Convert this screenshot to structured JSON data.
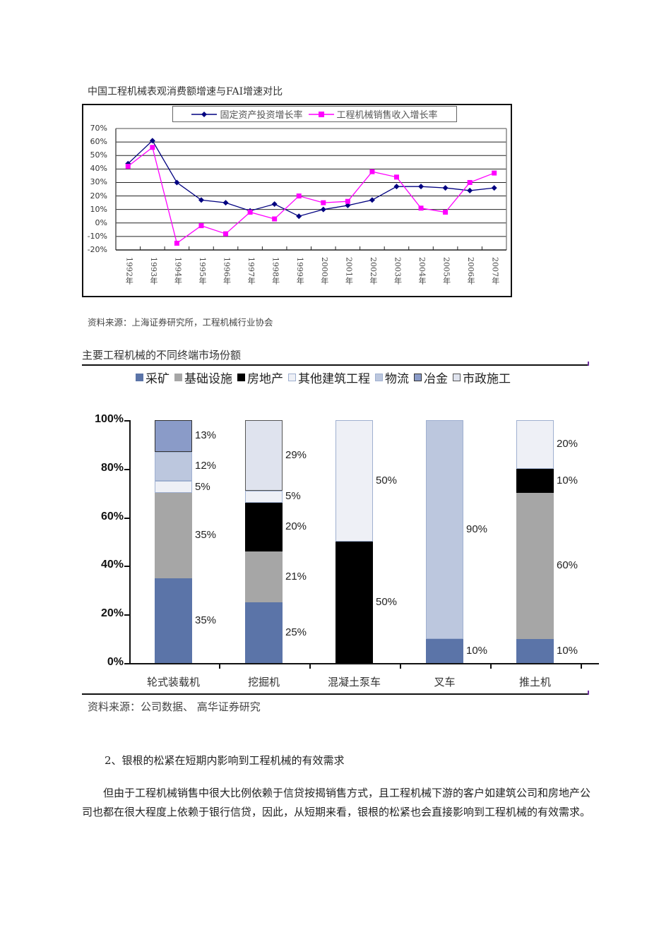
{
  "figure1": {
    "caption": "中国工程机械表观消费额增速与FAI增速对比",
    "source": "资料来源：上海证券研究所，工程机械行业协会"
  },
  "figure2": {
    "caption": "主要工程机械的不同终端市场份额",
    "source": "资料来源：公司数据、 高华证券研究"
  },
  "section": {
    "heading": "2、银根的松紧在短期内影响到工程机械的有效需求",
    "paragraph": "但由于工程机械销售中很大比例依赖于信贷按揭销售方式，且工程机械下游的客户如建筑公司和房地产公司也都在很大程度上依赖于银行信贷，因此，从短期来看，银根的松紧也会直接影响到工程机械的有效需求。"
  },
  "chart_data": [
    {
      "type": "line",
      "title": "中国工程机械表观消费额增速与FAI增速对比",
      "xlabel": "",
      "ylabel": "",
      "x": [
        "1992年",
        "1993年",
        "1994年",
        "1995年",
        "1996年",
        "1997年",
        "1998年",
        "1999年",
        "2000年",
        "2001年",
        "2002年",
        "2003年",
        "2004年",
        "2005年",
        "2006年",
        "2007年"
      ],
      "ytick_labels": [
        "70%",
        "60%",
        "50%",
        "40%",
        "30%",
        "20%",
        "10%",
        "0%",
        "-10%",
        "-20%"
      ],
      "ylim": [
        -20,
        70
      ],
      "grid": true,
      "legend_position": "top",
      "series": [
        {
          "name": "固定资产投资增长率",
          "color": "#000080",
          "marker": "diamond",
          "values": [
            44,
            61,
            30,
            17,
            15,
            9,
            14,
            5,
            10,
            13,
            17,
            27,
            27,
            26,
            24,
            26
          ]
        },
        {
          "name": "工程机械销售收入增长率",
          "color": "#ff00ff",
          "marker": "square",
          "values": [
            42,
            56,
            -15,
            -2,
            -8,
            8,
            3,
            20,
            15,
            16,
            38,
            34,
            11,
            8,
            30,
            37
          ]
        }
      ]
    },
    {
      "type": "bar",
      "stacked": true,
      "title": "主要工程机械的不同终端市场份额",
      "xlabel": "",
      "ylabel": "",
      "categories": [
        "轮式装载机",
        "挖掘机",
        "混凝土泵车",
        "叉车",
        "推土机"
      ],
      "ytick_labels": [
        "100%",
        "80%",
        "60%",
        "40%",
        "20%",
        "0%"
      ],
      "ylim": [
        0,
        100
      ],
      "grid": false,
      "legend_position": "top",
      "series": [
        {
          "name": "采矿",
          "color": "#5b74a8",
          "border": "#5b74a8",
          "values": [
            35,
            25,
            0,
            10,
            10
          ]
        },
        {
          "name": "基础设施",
          "color": "#a6a6a6",
          "border": "#a6a6a6",
          "values": [
            35,
            21,
            0,
            0,
            60
          ]
        },
        {
          "name": "房地产",
          "color": "#000000",
          "border": "#000000",
          "values": [
            0,
            20,
            50,
            0,
            10
          ]
        },
        {
          "name": "其他建筑工程",
          "color": "#eef0f6",
          "border": "#9fb0d0",
          "values": [
            5,
            5,
            50,
            0,
            20
          ]
        },
        {
          "name": "物流",
          "color": "#bcc7de",
          "border": "#9fb0d0",
          "values": [
            12,
            0,
            0,
            90,
            0
          ]
        },
        {
          "name": "冶金",
          "color": "#8a9bc8",
          "border": "#333333",
          "values": [
            13,
            0,
            0,
            0,
            0
          ]
        },
        {
          "name": "市政施工",
          "color": "#dfe3ee",
          "border": "#555555",
          "values": [
            0,
            29,
            0,
            0,
            0
          ]
        }
      ]
    }
  ]
}
